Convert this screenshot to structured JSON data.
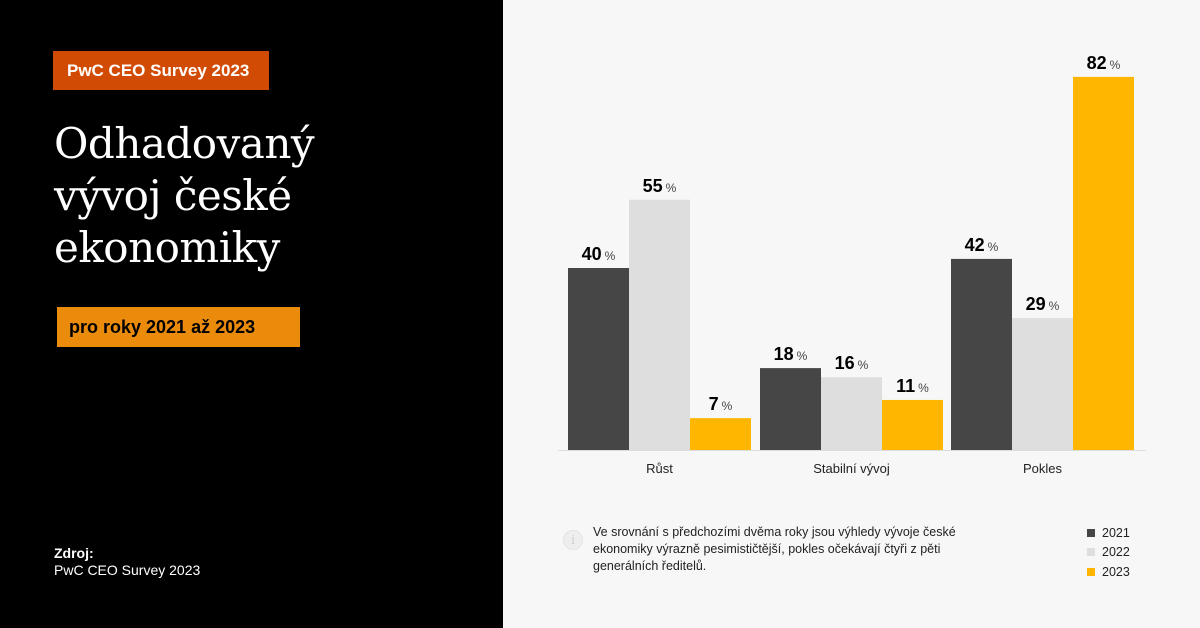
{
  "left_panel": {
    "badge": "PwC CEO Survey 2023",
    "title_lines": [
      "Odhadovaný",
      "vývoj české",
      "ekonomiky"
    ],
    "subtitle_badge": "pro roky 2021 až 2023",
    "source_label": "Zdroj:",
    "source_value": "PwC CEO Survey 2023"
  },
  "colors": {
    "badge_bg": "#d24b05",
    "subtitle_bg": "#ea8b0b",
    "series_2021": "#464646",
    "series_2022": "#dedede",
    "series_2023": "#ffb600"
  },
  "note": {
    "icon": "info-icon",
    "icon_glyph": "i",
    "text": "Ve srovnání s předchozími dvěma roky jsou výhledy vývoje české ekonomiky výrazně pesimističtější, pokles očekávají čtyři z pěti generálních ředitelů."
  },
  "legend": [
    {
      "label": "2021",
      "color": "#464646"
    },
    {
      "label": "2022",
      "color": "#dedede"
    },
    {
      "label": "2023",
      "color": "#ffb600"
    }
  ],
  "chart_data": {
    "type": "bar",
    "title": "Odhadovaný vývoj české ekonomiky",
    "subtitle": "pro roky 2021 až 2023",
    "categories": [
      "Růst",
      "Stabilní vývoj",
      "Pokles"
    ],
    "series": [
      {
        "name": "2021",
        "color": "#464646",
        "values": [
          40,
          18,
          42
        ]
      },
      {
        "name": "2022",
        "color": "#dedede",
        "values": [
          55,
          16,
          29
        ]
      },
      {
        "name": "2023",
        "color": "#ffb600",
        "values": [
          7,
          11,
          82
        ]
      }
    ],
    "unit": "%",
    "xlabel": "",
    "ylabel": "",
    "ylim": [
      0,
      82
    ],
    "grid": false,
    "legend_position": "bottom-right"
  }
}
